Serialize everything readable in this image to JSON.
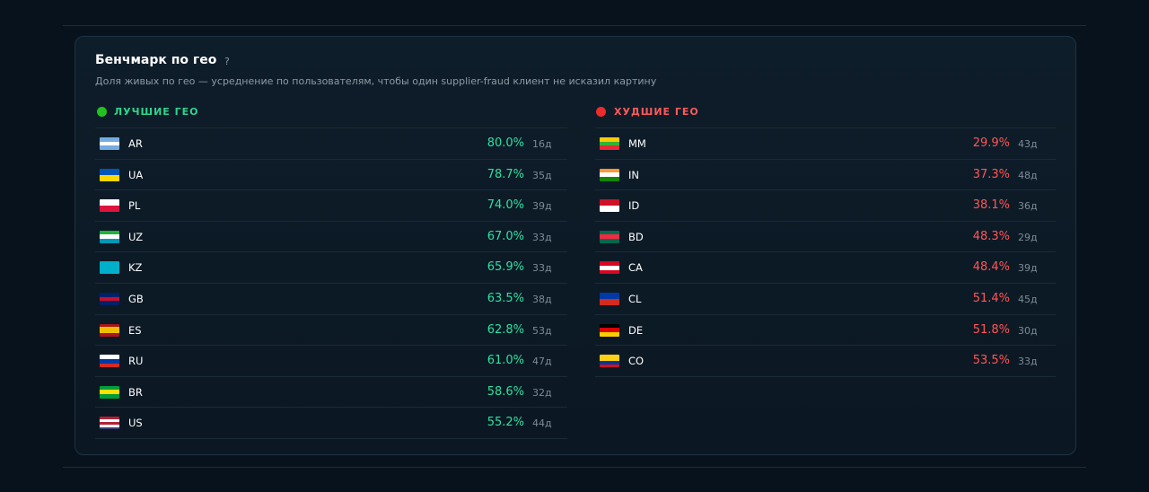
{
  "header": {
    "title": "Бенчмарк по гео",
    "help": "?",
    "subtitle": "Доля живых по гео — усреднение по пользователям, чтобы один supplier-fraud клиент не исказил картину"
  },
  "best": {
    "title": "ЛУЧШИЕ ГЕО",
    "rows": [
      [
        "AR",
        "80.0%",
        "16д"
      ],
      [
        "UA",
        "78.7%",
        "35д"
      ],
      [
        "PL",
        "74.0%",
        "39д"
      ],
      [
        "UZ",
        "67.0%",
        "33д"
      ],
      [
        "KZ",
        "65.9%",
        "33д"
      ],
      [
        "GB",
        "63.5%",
        "38д"
      ],
      [
        "ES",
        "62.8%",
        "53д"
      ],
      [
        "RU",
        "61.0%",
        "47д"
      ],
      [
        "BR",
        "58.6%",
        "32д"
      ],
      [
        "US",
        "55.2%",
        "44д"
      ]
    ]
  },
  "worst": {
    "title": "ХУДШИЕ ГЕО",
    "rows": [
      [
        "MM",
        "29.9%",
        "43д"
      ],
      [
        "IN",
        "37.3%",
        "48д"
      ],
      [
        "ID",
        "38.1%",
        "36д"
      ],
      [
        "BD",
        "48.3%",
        "29д"
      ],
      [
        "CA",
        "48.4%",
        "39д"
      ],
      [
        "CL",
        "51.4%",
        "45д"
      ],
      [
        "DE",
        "51.8%",
        "30д"
      ],
      [
        "CO",
        "53.5%",
        "33д"
      ]
    ]
  }
}
